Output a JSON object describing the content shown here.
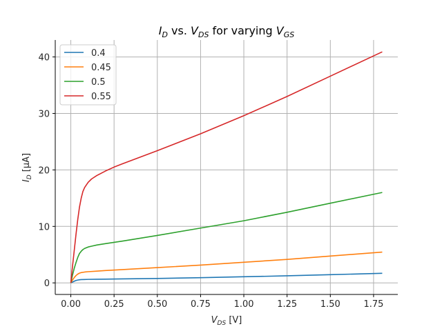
{
  "chart_data": {
    "type": "line",
    "title": {
      "base": "I",
      "base_sub": "D",
      "mid": " vs. ",
      "var": "V",
      "var_sub": "DS",
      "tail": " for varying ",
      "param": "V",
      "param_sub": "GS"
    },
    "xlabel": {
      "main": "V",
      "sub": "DS",
      "unit": " [V]"
    },
    "ylabel": {
      "main": "I",
      "sub": "D",
      "unit": " [μA]"
    },
    "xlim": [
      -0.09,
      1.89
    ],
    "ylim": [
      -2.05,
      43.0
    ],
    "xticks": [
      0.0,
      0.25,
      0.5,
      0.75,
      1.0,
      1.25,
      1.5,
      1.75
    ],
    "xtick_labels": [
      "0.00",
      "0.25",
      "0.50",
      "0.75",
      "1.00",
      "1.25",
      "1.50",
      "1.75"
    ],
    "yticks": [
      0,
      10,
      20,
      30,
      40
    ],
    "ytick_labels": [
      "0",
      "10",
      "20",
      "30",
      "40"
    ],
    "grid": true,
    "legend_position": "top-left",
    "series": [
      {
        "name": "0.4",
        "color": "#1f77b4",
        "x": [
          0,
          0.01,
          0.02,
          0.03,
          0.04,
          0.05,
          0.06,
          0.08,
          0.1,
          0.15,
          0.2,
          0.3,
          0.5,
          0.75,
          1.0,
          1.25,
          1.5,
          1.8
        ],
        "y": [
          0,
          0.15,
          0.3,
          0.42,
          0.5,
          0.55,
          0.58,
          0.6,
          0.62,
          0.64,
          0.66,
          0.7,
          0.78,
          0.92,
          1.08,
          1.25,
          1.45,
          1.7
        ]
      },
      {
        "name": "0.45",
        "color": "#ff7f0e",
        "x": [
          0,
          0.01,
          0.02,
          0.03,
          0.04,
          0.05,
          0.06,
          0.08,
          0.1,
          0.15,
          0.2,
          0.3,
          0.5,
          0.75,
          1.0,
          1.25,
          1.5,
          1.8
        ],
        "y": [
          0,
          0.5,
          0.95,
          1.3,
          1.55,
          1.72,
          1.82,
          1.92,
          1.98,
          2.08,
          2.18,
          2.35,
          2.7,
          3.15,
          3.65,
          4.15,
          4.75,
          5.45
        ]
      },
      {
        "name": "0.5",
        "color": "#2ca02c",
        "x": [
          0,
          0.01,
          0.02,
          0.03,
          0.04,
          0.05,
          0.06,
          0.07,
          0.08,
          0.1,
          0.12,
          0.15,
          0.2,
          0.3,
          0.5,
          0.75,
          1.0,
          1.25,
          1.5,
          1.8
        ],
        "y": [
          0,
          1.4,
          2.6,
          3.6,
          4.5,
          5.2,
          5.6,
          5.9,
          6.1,
          6.35,
          6.5,
          6.7,
          6.95,
          7.4,
          8.4,
          9.7,
          11.0,
          12.5,
          14.1,
          16.0
        ]
      },
      {
        "name": "0.55",
        "color": "#d62728",
        "x": [
          0,
          0.01,
          0.02,
          0.03,
          0.04,
          0.05,
          0.06,
          0.07,
          0.08,
          0.1,
          0.12,
          0.15,
          0.2,
          0.25,
          0.3,
          0.5,
          0.75,
          1.0,
          1.25,
          1.5,
          1.8
        ],
        "y": [
          0,
          3.0,
          5.8,
          8.6,
          11.2,
          13.4,
          15.0,
          16.2,
          16.9,
          17.8,
          18.4,
          19.0,
          19.8,
          20.5,
          21.1,
          23.4,
          26.4,
          29.6,
          33.0,
          36.6,
          40.9
        ]
      }
    ]
  }
}
